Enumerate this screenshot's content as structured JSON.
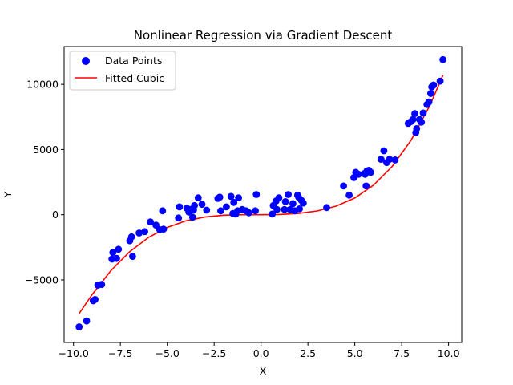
{
  "chart_data": {
    "type": "scatter",
    "title": "Nonlinear Regression via Gradient Descent",
    "xlabel": "X",
    "ylabel": "Y",
    "xlim": [
      -10.5,
      10.7
    ],
    "ylim": [
      -9800,
      12900
    ],
    "x_ticks": [
      -10.0,
      -7.5,
      -5.0,
      -2.5,
      0.0,
      2.5,
      5.0,
      7.5,
      10.0
    ],
    "x_tick_labels": [
      "−10.0",
      "−7.5",
      "−5.0",
      "−2.5",
      "0.0",
      "2.5",
      "5.0",
      "7.5",
      "10.0"
    ],
    "y_ticks": [
      -5000,
      0,
      5000,
      10000
    ],
    "y_tick_labels": [
      "−5000",
      "0",
      "5000",
      "10000"
    ],
    "grid": false,
    "legend_position": "top-left",
    "series": [
      {
        "name": "Data Points",
        "kind": "scatter",
        "color": "#0000ff",
        "points": [
          [
            -9.7,
            -8600
          ],
          [
            -9.3,
            -8150
          ],
          [
            -8.95,
            -6600
          ],
          [
            -8.85,
            -6500
          ],
          [
            -8.7,
            -5400
          ],
          [
            -8.5,
            -5350
          ],
          [
            -7.95,
            -3400
          ],
          [
            -7.9,
            -2900
          ],
          [
            -7.7,
            -3350
          ],
          [
            -7.6,
            -2650
          ],
          [
            -7.0,
            -2000
          ],
          [
            -6.9,
            -1700
          ],
          [
            -6.85,
            -3200
          ],
          [
            -6.5,
            -1400
          ],
          [
            -6.2,
            -1300
          ],
          [
            -5.9,
            -550
          ],
          [
            -5.6,
            -800
          ],
          [
            -5.4,
            -1150
          ],
          [
            -5.25,
            300
          ],
          [
            -5.2,
            -1100
          ],
          [
            -4.4,
            -250
          ],
          [
            -4.35,
            600
          ],
          [
            -3.95,
            500
          ],
          [
            -3.85,
            200
          ],
          [
            -3.75,
            400
          ],
          [
            -3.65,
            -200
          ],
          [
            -3.6,
            350
          ],
          [
            -3.55,
            700
          ],
          [
            -3.35,
            1300
          ],
          [
            -3.15,
            800
          ],
          [
            -2.9,
            350
          ],
          [
            -2.3,
            1250
          ],
          [
            -2.2,
            1350
          ],
          [
            -2.15,
            300
          ],
          [
            -1.85,
            600
          ],
          [
            -1.6,
            1400
          ],
          [
            -1.5,
            100
          ],
          [
            -1.45,
            950
          ],
          [
            -1.35,
            50
          ],
          [
            -1.25,
            300
          ],
          [
            -1.2,
            1300
          ],
          [
            -1.0,
            400
          ],
          [
            -0.8,
            300
          ],
          [
            -0.65,
            150
          ],
          [
            -0.25,
            1550
          ],
          [
            -0.3,
            300
          ],
          [
            0.6,
            50
          ],
          [
            0.65,
            700
          ],
          [
            0.8,
            1050
          ],
          [
            0.85,
            400
          ],
          [
            0.95,
            1300
          ],
          [
            1.25,
            400
          ],
          [
            1.3,
            1000
          ],
          [
            1.45,
            1550
          ],
          [
            1.55,
            400
          ],
          [
            1.7,
            850
          ],
          [
            1.8,
            300
          ],
          [
            1.95,
            1500
          ],
          [
            2.0,
            1350
          ],
          [
            2.05,
            450
          ],
          [
            2.15,
            1100
          ],
          [
            2.25,
            900
          ],
          [
            3.5,
            550
          ],
          [
            4.4,
            2200
          ],
          [
            4.7,
            1500
          ],
          [
            4.95,
            2850
          ],
          [
            5.05,
            3250
          ],
          [
            5.2,
            3100
          ],
          [
            5.5,
            3150
          ],
          [
            5.55,
            3100
          ],
          [
            5.6,
            2200
          ],
          [
            5.65,
            3350
          ],
          [
            5.75,
            3400
          ],
          [
            5.85,
            3250
          ],
          [
            6.4,
            4250
          ],
          [
            6.55,
            4900
          ],
          [
            6.7,
            4000
          ],
          [
            6.85,
            4250
          ],
          [
            7.15,
            4200
          ],
          [
            7.85,
            7000
          ],
          [
            8.0,
            7150
          ],
          [
            8.1,
            7300
          ],
          [
            8.2,
            7750
          ],
          [
            8.25,
            6300
          ],
          [
            8.3,
            6600
          ],
          [
            8.45,
            7300
          ],
          [
            8.55,
            7100
          ],
          [
            8.65,
            7800
          ],
          [
            8.85,
            8450
          ],
          [
            8.95,
            8650
          ],
          [
            9.05,
            9300
          ],
          [
            9.1,
            9800
          ],
          [
            9.2,
            9950
          ],
          [
            9.55,
            10250
          ],
          [
            9.7,
            11900
          ]
        ]
      },
      {
        "name": "Fitted Cubic",
        "kind": "line",
        "color": "#ff0000",
        "x": [
          -9.7,
          -9.0,
          -8.0,
          -7.0,
          -6.0,
          -5.0,
          -4.0,
          -3.0,
          -2.0,
          -1.0,
          0.0,
          1.0,
          2.0,
          3.0,
          4.0,
          5.0,
          6.0,
          7.0,
          8.0,
          9.0,
          9.7
        ],
        "y": [
          -7580,
          -6115,
          -4280,
          -2830,
          -1740,
          -970,
          -470,
          -180,
          -40,
          0,
          0,
          20,
          100,
          290,
          660,
          1280,
          2270,
          3710,
          5710,
          8360,
          10700
        ]
      }
    ]
  }
}
